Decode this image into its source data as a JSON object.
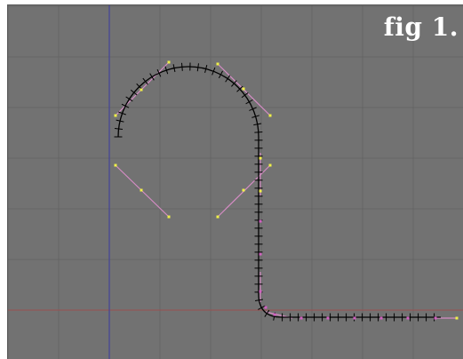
{
  "viewport": {
    "label": "fig 1.",
    "colors": {
      "background": "#727272",
      "grid": "#656565",
      "x_axis": "#9a5050",
      "y_axis": "#3a3aa0",
      "curve": "#000000",
      "handle_line": "#d58cc4",
      "handle_point_selected": "#f0f048",
      "handle_point": "#d060c0"
    }
  }
}
